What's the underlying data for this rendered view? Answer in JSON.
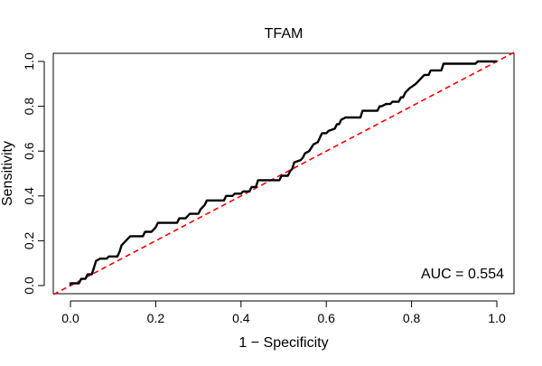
{
  "chart_data": {
    "type": "line",
    "title": "TFAM",
    "xlabel": "1 − Specificity",
    "ylabel": "Sensitivity",
    "xlim": [
      0,
      1
    ],
    "ylim": [
      0,
      1
    ],
    "x_ticks": [
      "0.0",
      "0.2",
      "0.4",
      "0.6",
      "0.8",
      "1.0"
    ],
    "y_ticks": [
      "0.0",
      "0.2",
      "0.4",
      "0.6",
      "0.8",
      "1.0"
    ],
    "grid": false,
    "annotation": "AUC = 0.554",
    "series": [
      {
        "color": "#000000",
        "style": "solid",
        "points": [
          [
            0.0,
            0.0
          ],
          [
            0.0,
            0.01
          ],
          [
            0.02,
            0.01
          ],
          [
            0.025,
            0.03
          ],
          [
            0.035,
            0.03
          ],
          [
            0.04,
            0.05
          ],
          [
            0.05,
            0.05
          ],
          [
            0.055,
            0.08
          ],
          [
            0.06,
            0.11
          ],
          [
            0.07,
            0.12
          ],
          [
            0.085,
            0.12
          ],
          [
            0.09,
            0.13
          ],
          [
            0.11,
            0.13
          ],
          [
            0.115,
            0.15
          ],
          [
            0.12,
            0.18
          ],
          [
            0.13,
            0.2
          ],
          [
            0.14,
            0.22
          ],
          [
            0.17,
            0.22
          ],
          [
            0.175,
            0.24
          ],
          [
            0.19,
            0.24
          ],
          [
            0.2,
            0.26
          ],
          [
            0.205,
            0.28
          ],
          [
            0.25,
            0.28
          ],
          [
            0.255,
            0.3
          ],
          [
            0.27,
            0.3
          ],
          [
            0.28,
            0.32
          ],
          [
            0.3,
            0.32
          ],
          [
            0.305,
            0.34
          ],
          [
            0.315,
            0.36
          ],
          [
            0.32,
            0.38
          ],
          [
            0.36,
            0.38
          ],
          [
            0.365,
            0.4
          ],
          [
            0.38,
            0.4
          ],
          [
            0.385,
            0.41
          ],
          [
            0.4,
            0.41
          ],
          [
            0.405,
            0.42
          ],
          [
            0.42,
            0.42
          ],
          [
            0.425,
            0.44
          ],
          [
            0.435,
            0.44
          ],
          [
            0.44,
            0.47
          ],
          [
            0.49,
            0.47
          ],
          [
            0.495,
            0.49
          ],
          [
            0.51,
            0.49
          ],
          [
            0.515,
            0.51
          ],
          [
            0.52,
            0.52
          ],
          [
            0.525,
            0.55
          ],
          [
            0.54,
            0.56
          ],
          [
            0.545,
            0.57
          ],
          [
            0.55,
            0.59
          ],
          [
            0.56,
            0.6
          ],
          [
            0.57,
            0.63
          ],
          [
            0.58,
            0.64
          ],
          [
            0.585,
            0.66
          ],
          [
            0.59,
            0.68
          ],
          [
            0.6,
            0.68
          ],
          [
            0.605,
            0.69
          ],
          [
            0.62,
            0.7
          ],
          [
            0.625,
            0.72
          ],
          [
            0.63,
            0.72
          ],
          [
            0.635,
            0.74
          ],
          [
            0.645,
            0.75
          ],
          [
            0.68,
            0.75
          ],
          [
            0.685,
            0.78
          ],
          [
            0.72,
            0.78
          ],
          [
            0.725,
            0.8
          ],
          [
            0.73,
            0.8
          ],
          [
            0.74,
            0.81
          ],
          [
            0.75,
            0.81
          ],
          [
            0.755,
            0.82
          ],
          [
            0.77,
            0.82
          ],
          [
            0.775,
            0.84
          ],
          [
            0.78,
            0.84
          ],
          [
            0.785,
            0.86
          ],
          [
            0.79,
            0.87
          ],
          [
            0.795,
            0.88
          ],
          [
            0.81,
            0.9
          ],
          [
            0.82,
            0.92
          ],
          [
            0.83,
            0.94
          ],
          [
            0.84,
            0.94
          ],
          [
            0.845,
            0.96
          ],
          [
            0.87,
            0.96
          ],
          [
            0.875,
            0.99
          ],
          [
            0.95,
            0.99
          ],
          [
            0.955,
            1.0
          ],
          [
            1.0,
            1.0
          ]
        ]
      },
      {
        "color": "#ff0000",
        "style": "dashed",
        "points": [
          [
            0.0,
            0.0
          ],
          [
            1.0,
            1.0
          ]
        ]
      }
    ]
  }
}
